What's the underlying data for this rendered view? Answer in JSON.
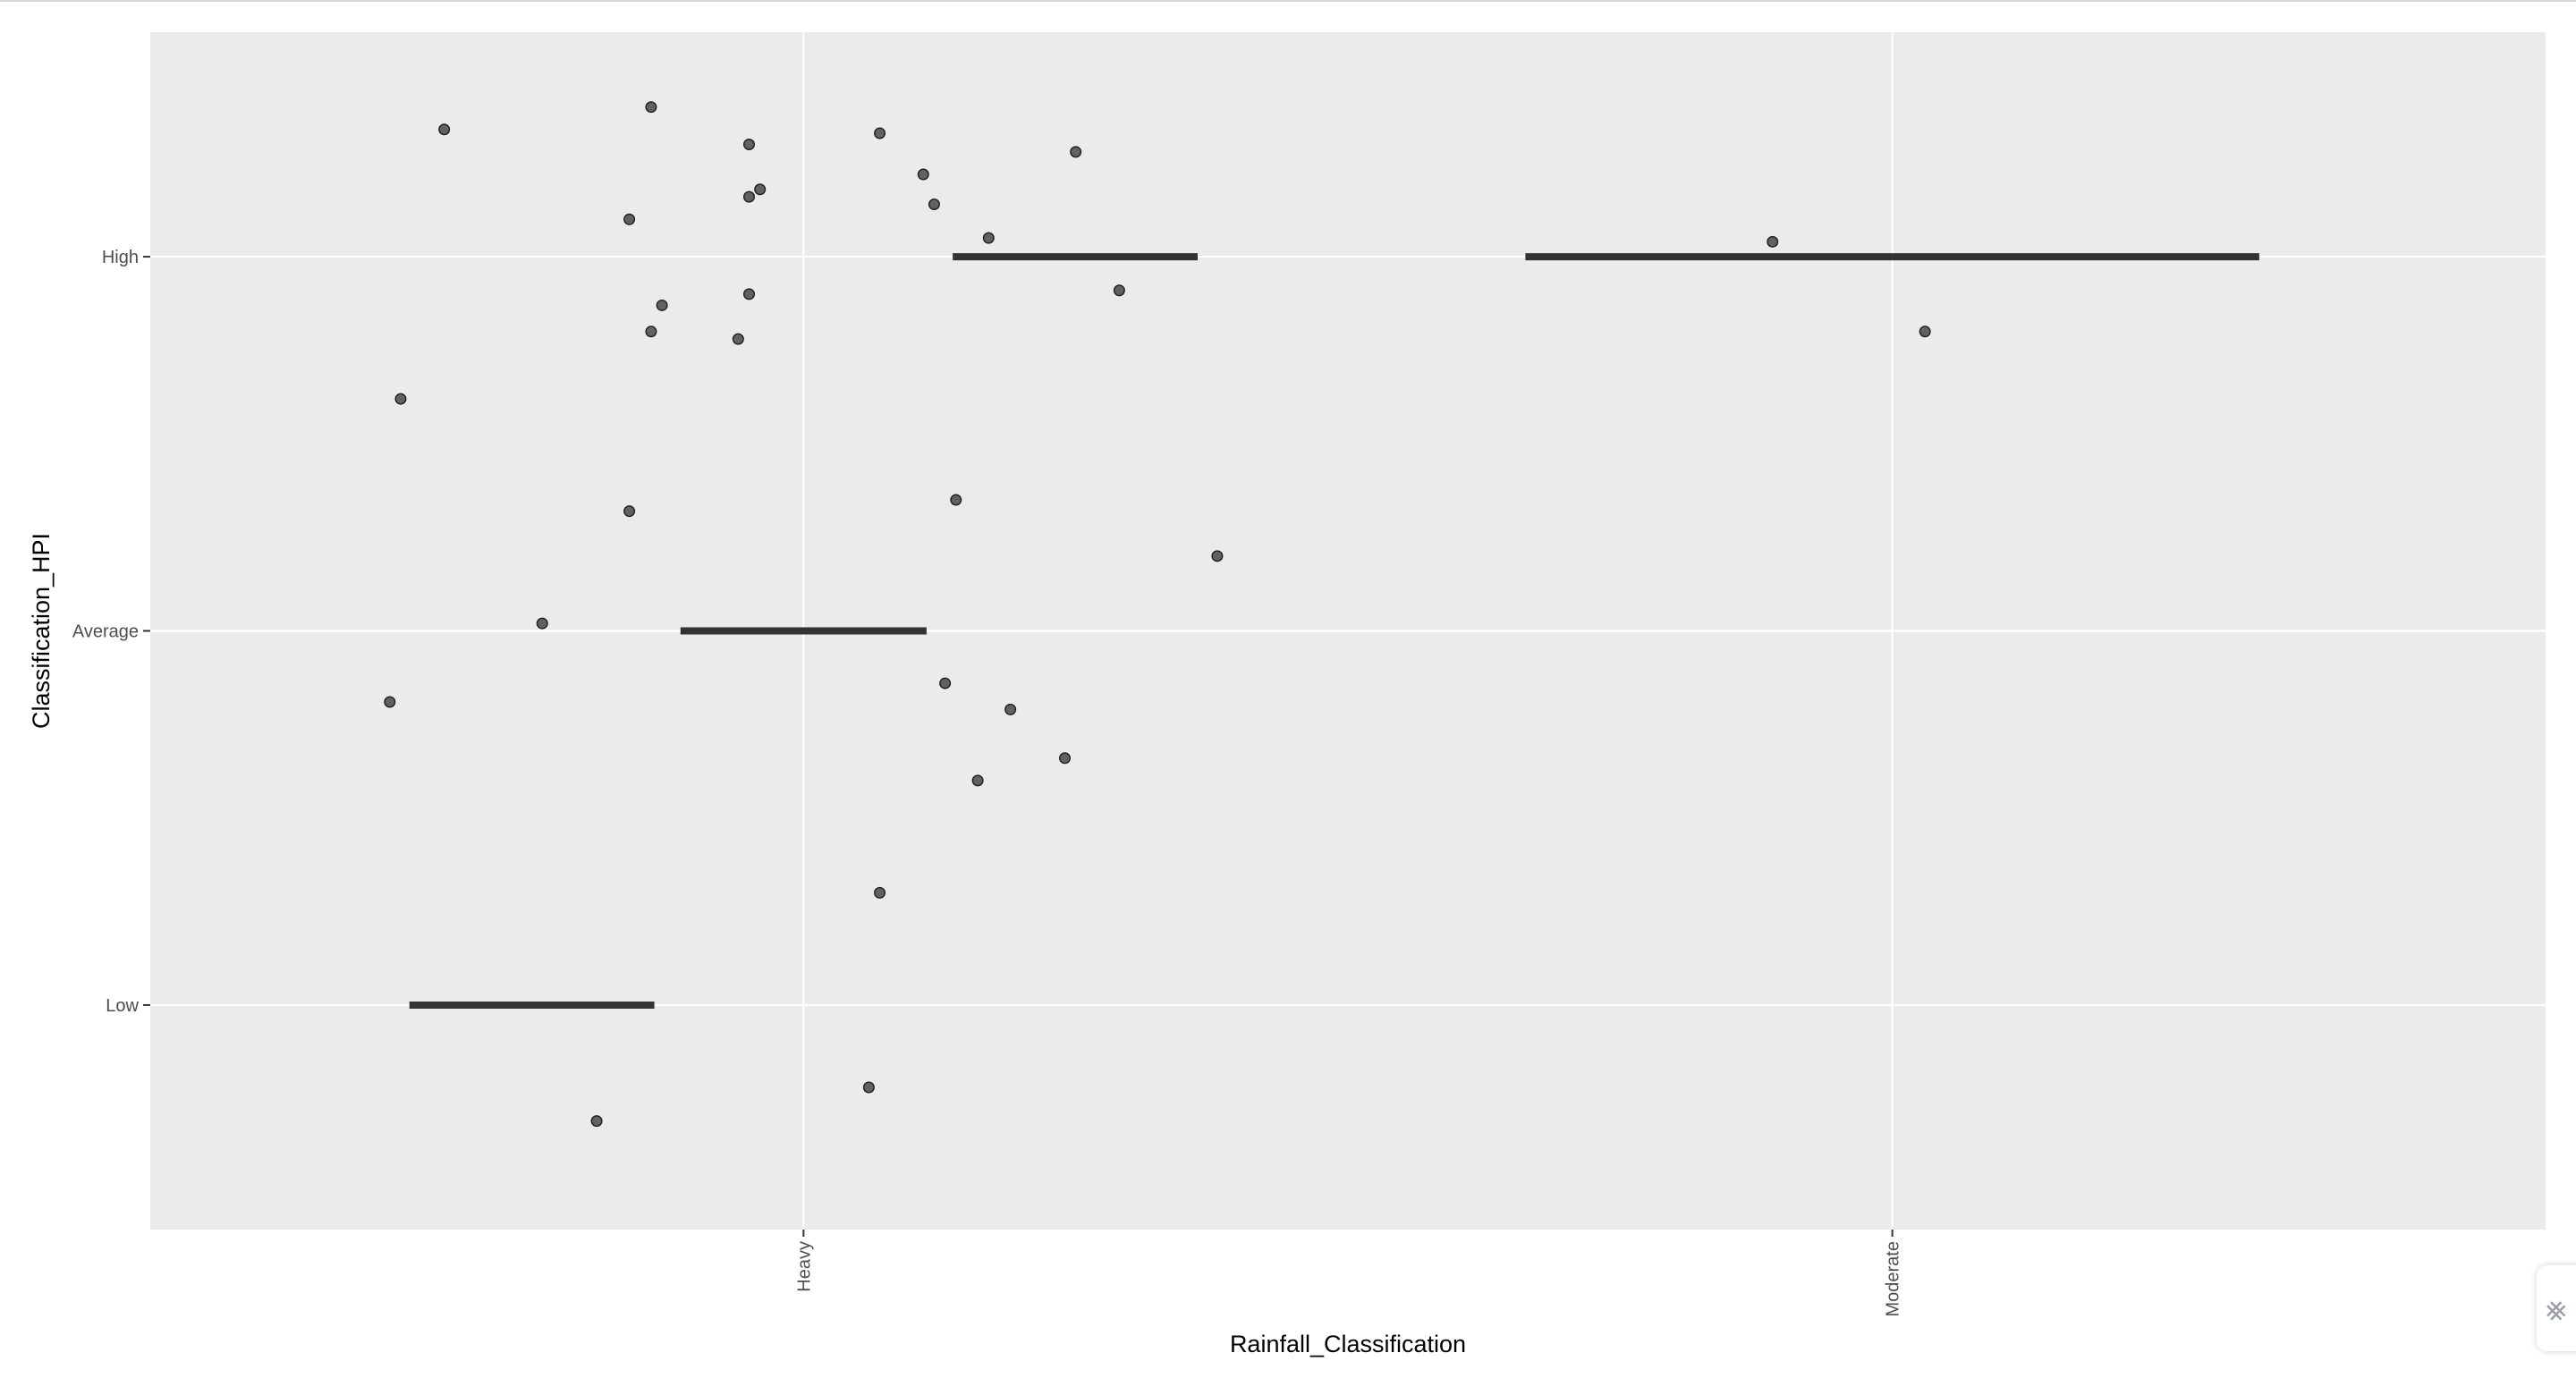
{
  "chart_data": {
    "type": "scatter",
    "xlabel": "Rainfall_Classification",
    "ylabel": "Classification_HPI",
    "x_categories": [
      "Heavy",
      "Moderate"
    ],
    "y_categories": [
      "Low",
      "Average",
      "High"
    ],
    "grid": true,
    "legend": "none",
    "colors": {
      "panel": "#ebebeb",
      "grid": "#ffffff",
      "point": "#616161",
      "point_edge": "#1f1f1f",
      "crossbar": "#333333",
      "tick": "#333333"
    },
    "points": [
      {
        "x": "Heavy",
        "jx": -0.33,
        "y": "High",
        "jy": 0.34
      },
      {
        "x": "Heavy",
        "jx": -0.14,
        "y": "High",
        "jy": 0.4
      },
      {
        "x": "Heavy",
        "jx": -0.05,
        "y": "High",
        "jy": 0.3
      },
      {
        "x": "Heavy",
        "jx": -0.04,
        "y": "High",
        "jy": 0.18
      },
      {
        "x": "Heavy",
        "jx": -0.05,
        "y": "High",
        "jy": 0.16
      },
      {
        "x": "Heavy",
        "jx": -0.16,
        "y": "High",
        "jy": 0.1
      },
      {
        "x": "Heavy",
        "jx": 0.07,
        "y": "High",
        "jy": 0.33
      },
      {
        "x": "Heavy",
        "jx": 0.11,
        "y": "High",
        "jy": 0.22
      },
      {
        "x": "Heavy",
        "jx": 0.12,
        "y": "High",
        "jy": 0.14
      },
      {
        "x": "Heavy",
        "jx": 0.25,
        "y": "High",
        "jy": 0.28
      },
      {
        "x": "Heavy",
        "jx": 0.17,
        "y": "High",
        "jy": 0.05
      },
      {
        "x": "Heavy",
        "jx": -0.05,
        "y": "High",
        "jy": -0.1
      },
      {
        "x": "Heavy",
        "jx": -0.13,
        "y": "High",
        "jy": -0.13
      },
      {
        "x": "Heavy",
        "jx": -0.14,
        "y": "High",
        "jy": -0.2
      },
      {
        "x": "Heavy",
        "jx": -0.06,
        "y": "High",
        "jy": -0.22
      },
      {
        "x": "Heavy",
        "jx": 0.29,
        "y": "High",
        "jy": -0.09
      },
      {
        "x": "Heavy",
        "jx": -0.37,
        "y": "High",
        "jy": -0.38
      },
      {
        "x": "Heavy",
        "jx": -0.16,
        "y": "Average",
        "jy": 0.32
      },
      {
        "x": "Heavy",
        "jx": 0.14,
        "y": "Average",
        "jy": 0.35
      },
      {
        "x": "Heavy",
        "jx": 0.38,
        "y": "Average",
        "jy": 0.2
      },
      {
        "x": "Heavy",
        "jx": -0.24,
        "y": "Average",
        "jy": 0.02
      },
      {
        "x": "Heavy",
        "jx": -0.38,
        "y": "Average",
        "jy": -0.19
      },
      {
        "x": "Heavy",
        "jx": 0.13,
        "y": "Average",
        "jy": -0.14
      },
      {
        "x": "Heavy",
        "jx": 0.19,
        "y": "Average",
        "jy": -0.21
      },
      {
        "x": "Heavy",
        "jx": 0.24,
        "y": "Average",
        "jy": -0.34
      },
      {
        "x": "Heavy",
        "jx": 0.16,
        "y": "Average",
        "jy": -0.4
      },
      {
        "x": "Heavy",
        "jx": 0.07,
        "y": "Low",
        "jy": 0.3
      },
      {
        "x": "Heavy",
        "jx": 0.06,
        "y": "Low",
        "jy": -0.22
      },
      {
        "x": "Heavy",
        "jx": -0.19,
        "y": "Low",
        "jy": -0.31
      },
      {
        "x": "Moderate",
        "jx": -0.11,
        "y": "High",
        "jy": 0.04
      },
      {
        "x": "Moderate",
        "jx": 0.03,
        "y": "High",
        "jy": -0.2
      }
    ],
    "crossbars": [
      {
        "y": "High",
        "x_from": 0.137,
        "x_to": 0.362
      },
      {
        "y": "Average",
        "x_from": -0.113,
        "x_to": 0.113
      },
      {
        "y": "Low",
        "x_from": -0.362,
        "x_to": -0.137
      },
      {
        "y": "High",
        "x_from": 0.663,
        "x_to": 1.337
      }
    ]
  }
}
